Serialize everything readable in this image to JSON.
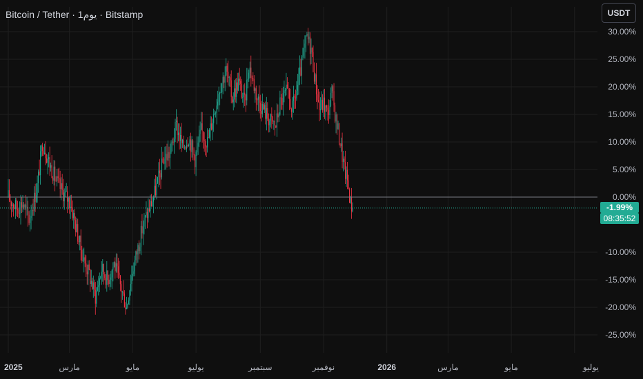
{
  "header": {
    "title": "Bitcoin / Tether · 1يوم · Bitstamp",
    "currency_button": "USDT"
  },
  "last_value": {
    "label": "-1.99%",
    "countdown": "08:35:52"
  },
  "colors": {
    "background": "#0f0f0f",
    "up": "#22ab94",
    "down": "#f23645",
    "grid": "#1f1f1f",
    "text": "#b2b5be"
  },
  "chart_data": {
    "type": "candlestick",
    "y_unit": "percent change",
    "y_ticks": [
      "30.00%",
      "25.00%",
      "20.00%",
      "15.00%",
      "10.00%",
      "5.00%",
      "0.00%",
      "-10.00%",
      "-15.00%",
      "-20.00%",
      "-25.00%"
    ],
    "y_tick_values": [
      30,
      25,
      20,
      15,
      10,
      5,
      0,
      -10,
      -15,
      -20,
      -25
    ],
    "x_ticks": [
      "2025",
      "مارس",
      "مايو",
      "يوليو",
      "سبتمبر",
      "نوفمبر",
      "2026",
      "مارس",
      "مايو",
      "يوليو"
    ],
    "x_tick_days": [
      0,
      59,
      120,
      181,
      243,
      304,
      365,
      424,
      485,
      546
    ],
    "x_days_per_tick_label_span": 1,
    "ylim": [
      -28,
      31
    ],
    "xlim": [
      0,
      552
    ],
    "zero_line": 0,
    "last_value": -1.99,
    "series_trend": [
      [
        0,
        0
      ],
      [
        8,
        -2
      ],
      [
        14,
        -1
      ],
      [
        20,
        -4
      ],
      [
        28,
        2
      ],
      [
        33,
        10
      ],
      [
        40,
        6
      ],
      [
        46,
        3
      ],
      [
        52,
        1
      ],
      [
        60,
        -1
      ],
      [
        66,
        -6
      ],
      [
        72,
        -11
      ],
      [
        78,
        -14
      ],
      [
        84,
        -18
      ],
      [
        90,
        -13
      ],
      [
        96,
        -15
      ],
      [
        102,
        -12
      ],
      [
        108,
        -16
      ],
      [
        114,
        -20
      ],
      [
        118,
        -15
      ],
      [
        124,
        -10
      ],
      [
        130,
        -5
      ],
      [
        136,
        -2
      ],
      [
        140,
        0
      ],
      [
        146,
        4
      ],
      [
        150,
        7
      ],
      [
        156,
        8
      ],
      [
        162,
        13
      ],
      [
        168,
        9
      ],
      [
        174,
        11
      ],
      [
        180,
        7
      ],
      [
        186,
        12
      ],
      [
        192,
        10
      ],
      [
        198,
        15
      ],
      [
        204,
        20
      ],
      [
        210,
        23
      ],
      [
        216,
        18
      ],
      [
        222,
        21
      ],
      [
        228,
        17
      ],
      [
        232,
        24
      ],
      [
        236,
        21
      ],
      [
        240,
        18
      ],
      [
        246,
        16
      ],
      [
        252,
        14
      ],
      [
        258,
        13
      ],
      [
        262,
        17
      ],
      [
        268,
        19
      ],
      [
        274,
        16
      ],
      [
        280,
        21
      ],
      [
        284,
        25
      ],
      [
        288,
        29
      ],
      [
        292,
        27
      ],
      [
        296,
        21
      ],
      [
        300,
        16
      ],
      [
        304,
        17
      ],
      [
        308,
        15
      ],
      [
        312,
        19
      ],
      [
        316,
        14
      ],
      [
        320,
        10
      ],
      [
        324,
        5
      ],
      [
        327,
        3
      ],
      [
        330,
        -1
      ],
      [
        332,
        -1.99
      ]
    ]
  }
}
